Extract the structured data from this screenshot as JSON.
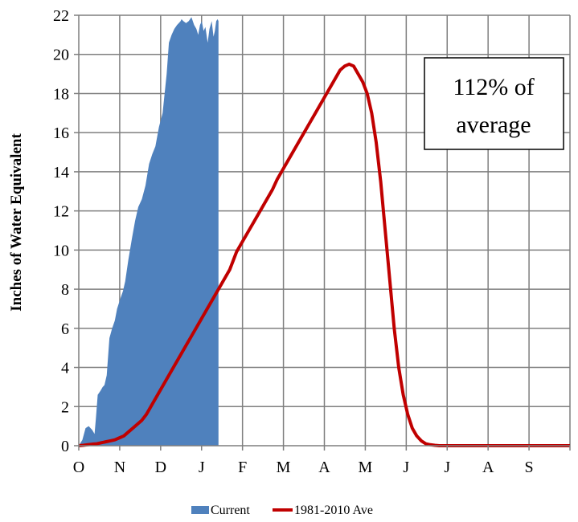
{
  "chart_data": {
    "type": "area",
    "ylabel": "Inches of Water Equivalent",
    "ylim": [
      0,
      22
    ],
    "y_ticks": [
      "0",
      "2",
      "4",
      "6",
      "8",
      "10",
      "12",
      "14",
      "16",
      "18",
      "20",
      "22"
    ],
    "x_months": [
      "O",
      "N",
      "D",
      "J",
      "F",
      "M",
      "A",
      "M",
      "J",
      "J",
      "A",
      "S"
    ],
    "grid": true,
    "legend_position": "bottom-center",
    "annotation": {
      "line1": "112% of",
      "line2": "average"
    },
    "series": [
      {
        "name": "Current",
        "kind": "area",
        "color": "#4f81bd",
        "x": [
          0,
          8,
          15,
          22,
          30,
          35,
          38,
          42,
          48,
          53,
          57,
          62,
          68,
          74,
          80,
          85,
          92,
          98,
          103,
          110,
          118,
          125,
          132,
          140,
          148,
          156,
          163,
          170,
          178,
          186,
          195,
          200,
          206,
          212,
          218,
          222,
          226,
          228,
          232,
          238,
          244,
          250,
          256,
          261,
          265,
          269,
          273,
          277,
          281,
          286,
          290,
          295,
          299,
          302,
          305,
          308,
          310
        ],
        "y": [
          0,
          0.3,
          0.9,
          1.0,
          0.8,
          0.6,
          1.4,
          2.6,
          2.8,
          3.0,
          3.1,
          3.6,
          5.5,
          6.0,
          6.4,
          7.0,
          7.5,
          7.9,
          8.4,
          9.5,
          10.6,
          11.5,
          12.2,
          12.6,
          13.3,
          14.4,
          14.9,
          15.3,
          16.3,
          17.0,
          19.0,
          20.6,
          21.0,
          21.3,
          21.5,
          21.6,
          21.7,
          21.8,
          21.7,
          21.6,
          21.7,
          21.9,
          21.5,
          21.3,
          21.0,
          21.5,
          21.7,
          21.2,
          21.4,
          20.6,
          21.3,
          21.7,
          20.9,
          21.2,
          21.7,
          21.8,
          21.7
        ]
      },
      {
        "name": "1981-2010 Ave",
        "kind": "line",
        "color": "#c00000",
        "x": [
          0,
          10,
          20,
          30,
          40,
          50,
          60,
          70,
          80,
          90,
          100,
          110,
          120,
          130,
          140,
          150,
          160,
          170,
          180,
          190,
          200,
          210,
          220,
          230,
          240,
          250,
          260,
          270,
          280,
          290,
          300,
          310,
          320,
          330,
          335,
          340,
          345,
          350,
          360,
          370,
          380,
          390,
          400,
          410,
          420,
          430,
          440,
          450,
          460,
          470,
          480,
          490,
          500,
          510,
          520,
          530,
          540,
          550,
          560,
          570,
          580,
          590,
          600,
          610,
          620,
          630,
          640,
          650,
          660,
          670,
          680,
          690,
          700,
          710,
          720,
          730,
          740,
          750,
          760,
          770,
          780,
          790,
          800,
          810,
          820,
          830,
          840,
          850,
          860,
          870,
          880,
          890,
          900,
          910,
          920,
          930,
          940,
          950,
          960,
          970,
          980,
          990,
          1000,
          1010,
          1020,
          1030,
          1040,
          1050,
          1060,
          1070,
          1080,
          1090
        ],
        "y": [
          0,
          0.02,
          0.05,
          0.08,
          0.1,
          0.15,
          0.2,
          0.25,
          0.3,
          0.4,
          0.5,
          0.7,
          0.9,
          1.1,
          1.3,
          1.6,
          2.0,
          2.4,
          2.8,
          3.2,
          3.6,
          4.0,
          4.4,
          4.8,
          5.2,
          5.6,
          6.0,
          6.4,
          6.8,
          7.2,
          7.6,
          8.0,
          8.4,
          8.8,
          9.0,
          9.3,
          9.6,
          9.9,
          10.3,
          10.7,
          11.1,
          11.5,
          11.9,
          12.3,
          12.7,
          13.1,
          13.6,
          14.0,
          14.4,
          14.8,
          15.2,
          15.6,
          16.0,
          16.4,
          16.8,
          17.2,
          17.6,
          18.0,
          18.4,
          18.8,
          19.2,
          19.4,
          19.5,
          19.4,
          19.0,
          18.6,
          18.0,
          17.0,
          15.5,
          13.5,
          11.0,
          8.5,
          6.0,
          4.0,
          2.6,
          1.6,
          0.9,
          0.5,
          0.25,
          0.1,
          0.05,
          0.02,
          0,
          0,
          0,
          0,
          0,
          0,
          0,
          0,
          0,
          0,
          0,
          0,
          0,
          0,
          0,
          0,
          0,
          0,
          0,
          0,
          0,
          0,
          0,
          0,
          0,
          0,
          0,
          0,
          0,
          0
        ]
      }
    ]
  }
}
